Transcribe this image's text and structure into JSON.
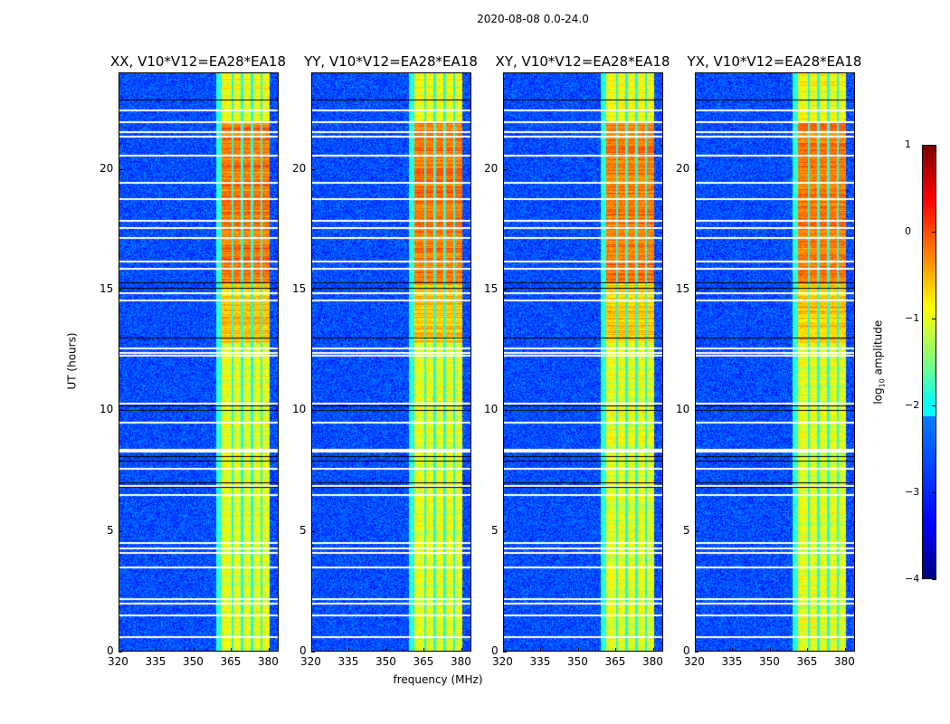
{
  "chart_data": {
    "type": "heatmap",
    "title": "2020-08-08 0.0-24.0",
    "xlabel": "frequency (MHz)",
    "ylabel": "UT (hours)",
    "xlim": [
      320,
      384
    ],
    "ylim": [
      0,
      24
    ],
    "xticks": [
      "320",
      "335",
      "350",
      "365",
      "380"
    ],
    "yticks": [
      "0",
      "5",
      "10",
      "15",
      "20"
    ],
    "panels": [
      {
        "title": "XX, V10*V12=EA28*EA18"
      },
      {
        "title": "YY, V10*V12=EA28*EA18"
      },
      {
        "title": "XY, V10*V12=EA28*EA18"
      },
      {
        "title": "YX, V10*V12=EA28*EA18"
      }
    ],
    "colorbar": {
      "label_prefix": "log",
      "label_sub": "10",
      "label_suffix": " amplitude",
      "colormap": "jet",
      "range": [
        -4,
        1
      ],
      "ticks": [
        "−4",
        "−3",
        "−2",
        "−1",
        "0",
        "1"
      ]
    },
    "background_level": -3.0,
    "rfi_band_mhz": [
      361,
      380.5
    ],
    "rfi_band_gaps_mhz": [
      365.5,
      369.5,
      373.5,
      377.2
    ],
    "rfi_levels": [
      {
        "ut": [
          0,
          12.8
        ],
        "level": -1.0
      },
      {
        "ut": [
          12.8,
          15.3
        ],
        "level": -0.6
      },
      {
        "ut": [
          15.3,
          22
        ],
        "level": -0.2
      },
      {
        "ut": [
          22,
          24
        ],
        "level": -0.9
      }
    ],
    "flagged_ut_hours": [
      22.5,
      22.0,
      21.6,
      21.4,
      20.6,
      19.5,
      18.8,
      17.9,
      17.6,
      17.2,
      16.2,
      15.9,
      14.9,
      14.6,
      12.6,
      12.4,
      12.3,
      10.3,
      9.5,
      8.4,
      8.3,
      7.6,
      6.9,
      6.5,
      4.5,
      4.3,
      4.1,
      3.5,
      2.2,
      2.0,
      1.5,
      0.6
    ],
    "zero_ut_hours": [
      22.9,
      15.3,
      15.1,
      13.0,
      10.2,
      10.0,
      8.1,
      7.9,
      7.0,
      6.8
    ]
  }
}
